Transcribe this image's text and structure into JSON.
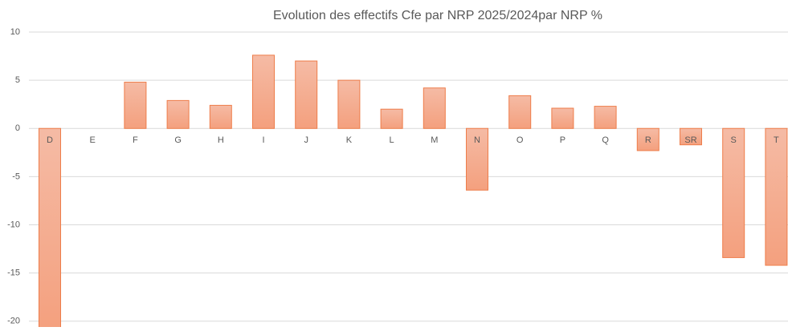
{
  "chart_data": {
    "type": "bar",
    "title": "Evolution des effectifs Cfe par NRP 2025/2024par NRP %",
    "categories": [
      "D",
      "E",
      "F",
      "G",
      "H",
      "I",
      "J",
      "K",
      "L",
      "M",
      "N",
      "O",
      "P",
      "Q",
      "R",
      "SR",
      "S",
      "T"
    ],
    "values": [
      -21,
      null,
      4.8,
      2.9,
      2.4,
      7.6,
      7.0,
      5.0,
      2.0,
      4.2,
      -6.4,
      3.4,
      2.1,
      2.3,
      -2.3,
      -1.7,
      -13.4,
      -14.2
    ],
    "color": "#f4a582",
    "ylim": [
      -20.6,
      10
    ],
    "yticks": [
      10,
      5,
      0,
      -5,
      -10,
      -15,
      -20
    ],
    "grid": true
  }
}
